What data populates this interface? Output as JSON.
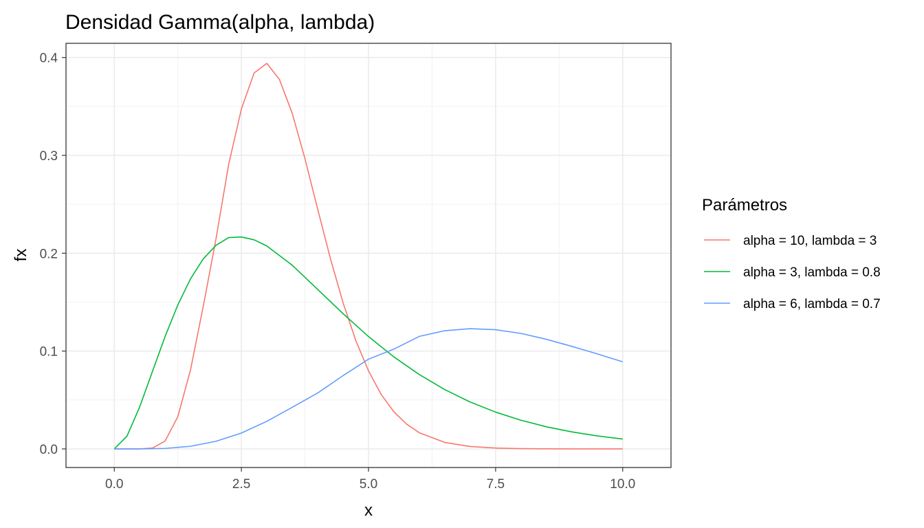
{
  "chart_data": {
    "type": "line",
    "title": "Densidad Gamma(alpha, lambda)",
    "xlabel": "x",
    "ylabel": "fx",
    "xlim": [
      -0.95,
      10.95
    ],
    "ylim": [
      -0.019,
      0.4145
    ],
    "x_ticks": [
      0.0,
      2.5,
      5.0,
      7.5,
      10.0
    ],
    "x_tick_labels": [
      "0.0",
      "2.5",
      "5.0",
      "7.5",
      "10.0"
    ],
    "y_ticks": [
      0.0,
      0.1,
      0.2,
      0.3,
      0.4
    ],
    "y_tick_labels": [
      "0.0",
      "0.1",
      "0.2",
      "0.3",
      "0.4"
    ],
    "grid": true,
    "legend": {
      "title": "Parámetros",
      "position": "right"
    },
    "series": [
      {
        "name": "alpha = 10, lambda = 3",
        "color": "#F8766D",
        "x": [
          0,
          0.5,
          0.75,
          1.0,
          1.25,
          1.5,
          1.75,
          2.0,
          2.25,
          2.5,
          2.75,
          3.0,
          3.25,
          3.5,
          3.75,
          4.0,
          4.25,
          4.5,
          4.75,
          5.0,
          5.25,
          5.5,
          5.75,
          6.0,
          6.5,
          7.0,
          7.5,
          8.0,
          8.5,
          9.0,
          10.0
        ],
        "y": [
          0,
          0.0,
          0.0009,
          0.0081,
          0.033,
          0.081,
          0.1458,
          0.2145,
          0.2908,
          0.3474,
          0.3842,
          0.394,
          0.3774,
          0.3429,
          0.2966,
          0.2451,
          0.1947,
          0.1493,
          0.1108,
          0.0798,
          0.0556,
          0.0379,
          0.0253,
          0.0165,
          0.0066,
          0.0025,
          0.0009,
          0.0003,
          0.0001,
          0.0,
          0.0
        ]
      },
      {
        "name": "alpha = 3, lambda = 0.8",
        "color": "#00BA38",
        "x": [
          0,
          0.25,
          0.5,
          0.75,
          1.0,
          1.25,
          1.5,
          1.75,
          2.0,
          2.25,
          2.5,
          2.75,
          3.0,
          3.5,
          4.0,
          4.5,
          5.0,
          5.5,
          6.0,
          6.5,
          7.0,
          7.5,
          8.0,
          8.5,
          9.0,
          9.5,
          10.0
        ],
        "y": [
          0,
          0.0131,
          0.043,
          0.0791,
          0.115,
          0.1472,
          0.1739,
          0.1942,
          0.2081,
          0.216,
          0.2166,
          0.2137,
          0.2074,
          0.1877,
          0.163,
          0.1382,
          0.1148,
          0.094,
          0.076,
          0.0606,
          0.0479,
          0.0376,
          0.0293,
          0.0226,
          0.0174,
          0.0133,
          0.0101
        ]
      },
      {
        "name": "alpha = 6, lambda = 0.7",
        "color": "#619CFF",
        "x": [
          0,
          0.5,
          1.0,
          1.5,
          2.0,
          2.5,
          3.0,
          3.5,
          4.0,
          4.5,
          5.0,
          5.5,
          6.0,
          6.5,
          7.0,
          7.5,
          8.0,
          8.5,
          9.0,
          9.5,
          10.0
        ],
        "y": [
          0,
          0.0,
          0.0005,
          0.0027,
          0.0078,
          0.0162,
          0.0282,
          0.0425,
          0.0571,
          0.0749,
          0.0917,
          0.102,
          0.115,
          0.1208,
          0.1229,
          0.1218,
          0.118,
          0.112,
          0.1048,
          0.0971,
          0.089
        ]
      }
    ]
  }
}
